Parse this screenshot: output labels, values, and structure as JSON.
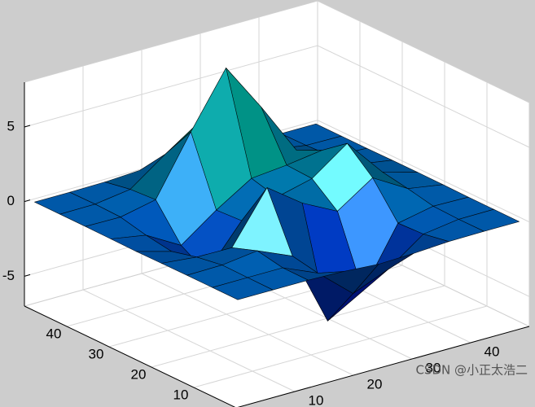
{
  "chart_data": {
    "type": "surface",
    "x": [
      1,
      7,
      13,
      19,
      25,
      31,
      37,
      43,
      49
    ],
    "y": [
      1,
      7,
      13,
      19,
      25,
      31,
      37,
      43,
      49
    ],
    "z": [
      [
        0,
        0,
        0,
        -0.08,
        -0.24,
        -0.17,
        -0.03,
        0,
        0
      ],
      [
        0,
        0.01,
        0.01,
        -1.0,
        -3.02,
        -2.05,
        -0.35,
        -0.01,
        0
      ],
      [
        0,
        0.03,
        0.33,
        -0.68,
        -5.68,
        -4.32,
        -0.44,
        0.05,
        0
      ],
      [
        -0.02,
        -0.25,
        -0.28,
        3.09,
        1.4,
        0.2,
        1.78,
        0.41,
        0.02
      ],
      [
        -0.04,
        -0.69,
        -2.77,
        0.06,
        0.98,
        1.57,
        3.27,
        0.7,
        0.03
      ],
      [
        -0.02,
        -0.42,
        -1.76,
        -0.05,
        1.42,
        1.65,
        1.99,
        0.4,
        0.02
      ],
      [
        0,
        -0.03,
        0.48,
        4.37,
        8.0,
        4.72,
        1.19,
        0.12,
        0
      ],
      [
        0,
        0.02,
        0.36,
        2.07,
        3.65,
        2.09,
        0.41,
        0.03,
        0
      ],
      [
        0,
        0,
        0.03,
        0.17,
        0.3,
        0.17,
        0.03,
        0,
        0
      ]
    ],
    "xlim": [
      0,
      50
    ],
    "ylim": [
      0,
      50
    ],
    "zlim": [
      -7,
      8
    ],
    "xticks": [
      10,
      20,
      30,
      40
    ],
    "yticks": [
      10,
      20,
      30,
      40
    ],
    "zticks": [
      -5,
      0,
      5
    ],
    "colormap": "winter",
    "grid": true,
    "edge_color": "#000000"
  },
  "watermark": "CSDN @小正太浩二"
}
